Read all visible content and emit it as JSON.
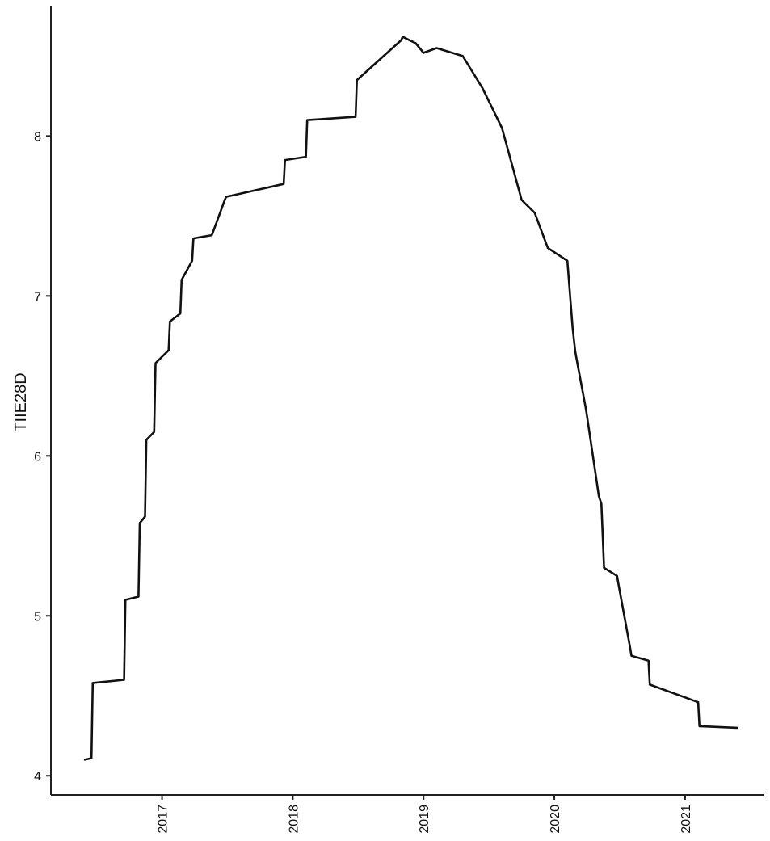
{
  "chart_data": {
    "type": "line",
    "title": "",
    "xlabel": "",
    "ylabel": "TIIE28D",
    "xlim": [
      2016.15,
      2021.6
    ],
    "ylim": [
      3.88,
      8.81
    ],
    "x_ticks": [
      2017,
      2018,
      2019,
      2020,
      2021
    ],
    "x_tick_labels": [
      "2017",
      "2018",
      "2019",
      "2020",
      "2021"
    ],
    "y_ticks": [
      4,
      5,
      6,
      7,
      8
    ],
    "y_tick_labels": [
      "4",
      "5",
      "6",
      "7",
      "8"
    ],
    "grid": false,
    "legend": "none",
    "line_color": "#111111",
    "series": [
      {
        "x": [
          2016.41,
          2016.46,
          2016.47,
          2016.71,
          2016.72,
          2016.82,
          2016.83,
          2016.87,
          2016.88,
          2016.94,
          2016.95,
          2017.05,
          2017.06,
          2017.14,
          2017.15,
          2017.23,
          2017.24,
          2017.38,
          2017.39,
          2017.48,
          2017.49,
          2017.93,
          2017.94,
          2018.1,
          2018.11,
          2018.48,
          2018.49,
          2018.83,
          2018.84,
          2018.94,
          2019.0,
          2019.1,
          2019.3,
          2019.45,
          2019.6,
          2019.65,
          2019.75,
          2019.85,
          2019.95,
          2020.1,
          2020.14,
          2020.16,
          2020.24,
          2020.25,
          2020.34,
          2020.36,
          2020.38,
          2020.48,
          2020.49,
          2020.58,
          2020.59,
          2020.72,
          2020.73,
          2021.1,
          2021.11,
          2021.4
        ],
        "y": [
          4.1,
          4.11,
          4.58,
          4.6,
          5.1,
          5.12,
          5.58,
          5.62,
          6.1,
          6.15,
          6.58,
          6.66,
          6.84,
          6.89,
          7.1,
          7.22,
          7.36,
          7.38,
          7.4,
          7.6,
          7.62,
          7.7,
          7.85,
          7.87,
          8.1,
          8.12,
          8.35,
          8.6,
          8.62,
          8.58,
          8.52,
          8.55,
          8.5,
          8.3,
          8.05,
          7.9,
          7.6,
          7.52,
          7.3,
          7.22,
          6.8,
          6.65,
          6.3,
          6.25,
          5.75,
          5.7,
          5.3,
          5.25,
          5.2,
          4.8,
          4.75,
          4.72,
          4.57,
          4.46,
          4.31,
          4.3
        ]
      }
    ]
  }
}
